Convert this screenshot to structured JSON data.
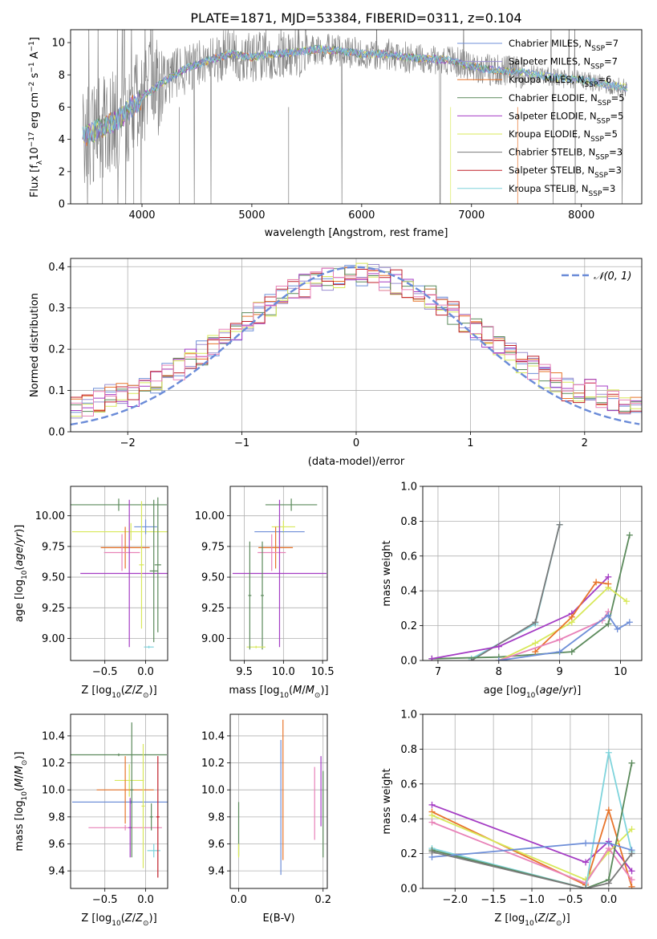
{
  "figure": {
    "title": "PLATE=1871, MJD=53384, FIBERID=0311, z=0.104"
  },
  "colors": {
    "chabrier_miles": "#6f8fd8",
    "salpeter_miles": "#9b8fd0",
    "kroupa_miles": "#e8742a",
    "chabrier_elodie": "#5b8a5b",
    "salpeter_elodie": "#a43cc4",
    "kroupa_elodie": "#d8e85a",
    "chabrier_stelib": "#7a7a7a",
    "salpeter_stelib": "#c0202a",
    "kroupa_stelib": "#7fd4dc",
    "pink": "#e882b8",
    "grid": "#b0b0b0",
    "normal_curve": "#6a8bd8"
  },
  "chart_data": [
    {
      "id": "spectrum",
      "type": "line",
      "xlabel": "wavelength [Angstrom, rest frame]",
      "ylabel": "Flux [f",
      "xlim": [
        3350,
        8550
      ],
      "ylim": [
        0,
        10.8
      ],
      "xticks": [
        "4000",
        "5000",
        "6000",
        "7000",
        "8000"
      ],
      "yticks": [
        "0",
        "2",
        "4",
        "6",
        "8",
        "10"
      ],
      "grid": false,
      "legend_position": "right",
      "series_names": [
        "Chabrier MILES, N_SSP=7",
        "Salpeter MILES, N_SSP=7",
        "Kroupa MILES, N_SSP=6",
        "Chabrier ELODIE, N_SSP=5",
        "Salpeter ELODIE, N_SSP=5",
        "Kroupa ELODIE, N_SSP=5",
        "Chabrier STELIB, N_SSP=3",
        "Salpeter STELIB, N_SSP=3",
        "Kroupa STELIB, N_SSP=3"
      ],
      "continuum": {
        "x": [
          3450,
          3600,
          3800,
          4000,
          4200,
          4400,
          4600,
          4800,
          5000,
          5200,
          5400,
          5600,
          5800,
          6000,
          6200,
          6400,
          6600,
          6800,
          7000,
          7200,
          7400,
          7600,
          7800,
          8000,
          8200,
          8400
        ],
        "y": [
          4.1,
          4.6,
          5.3,
          6.6,
          7.6,
          8.4,
          8.9,
          9.3,
          9.1,
          9.3,
          9.4,
          9.6,
          9.5,
          9.3,
          9.3,
          9.1,
          9.0,
          8.9,
          8.5,
          8.3,
          8.2,
          8.0,
          7.8,
          7.7,
          7.4,
          7.2
        ]
      }
    },
    {
      "id": "residuals",
      "type": "line",
      "xlabel": "(data-model)/error",
      "ylabel": "Normed distribution",
      "xlim": [
        -2.5,
        2.5
      ],
      "ylim": [
        0,
        0.42
      ],
      "xticks": [
        "−2",
        "−1",
        "0",
        "1",
        "2"
      ],
      "yticks": [
        "0.0",
        "0.1",
        "0.2",
        "0.3",
        "0.4"
      ],
      "grid": true,
      "legend": "𝒩(0, 1)",
      "legend_position": "top-right",
      "series": [
        {
          "name": "𝒩(0, 1)",
          "mu": 0,
          "sigma": 1
        }
      ]
    },
    {
      "id": "age_vs_Z",
      "type": "scatter",
      "xlabel": "Z [log",
      "ylabel": "age  [log",
      "xlim": [
        -0.92,
        0.27
      ],
      "ylim": [
        8.82,
        10.24
      ],
      "xticks": [
        "−0.5",
        "0.0"
      ],
      "yticks": [
        "9.00",
        "9.25",
        "9.50",
        "9.75",
        "10.00"
      ],
      "grid": true,
      "points": [
        {
          "x": -0.33,
          "y": 10.09,
          "xerr": 0.59,
          "yerr": 0.05
        },
        {
          "x": -0.18,
          "y": 9.87,
          "xerr": 0.72,
          "yerr": 0.07
        },
        {
          "x": 0.0,
          "y": 9.91,
          "xerr": 0.14,
          "yerr": 0.06
        },
        {
          "x": -0.25,
          "y": 9.74,
          "xerr": 0.3,
          "yerr": 0.17
        },
        {
          "x": -0.29,
          "y": 9.7,
          "xerr": 0.22,
          "yerr": 0.15
        },
        {
          "x": -0.2,
          "y": 9.53,
          "xerr": 0.6,
          "yerr": 0.6
        },
        {
          "x": 0.1,
          "y": 9.55,
          "xerr": 0.05,
          "yerr": 0.58
        },
        {
          "x": -0.05,
          "y": 9.6,
          "xerr": 0.03,
          "yerr": 0.52
        },
        {
          "x": 0.15,
          "y": 9.6,
          "xerr": 0.04,
          "yerr": 0.55
        },
        {
          "x": 0.04,
          "y": 8.93,
          "xerr": 0.06,
          "yerr": 0.01
        }
      ]
    },
    {
      "id": "age_vs_mass",
      "type": "scatter",
      "xlabel": "mass [log",
      "ylabel": "",
      "xlim": [
        9.32,
        10.56
      ],
      "ylim": [
        8.82,
        10.24
      ],
      "xticks": [
        "9.5",
        "10.0",
        "10.5"
      ],
      "yticks": [
        "9.00",
        "9.25",
        "9.50",
        "9.75",
        "10.00"
      ],
      "grid": true,
      "points": [
        {
          "x": 10.1,
          "y": 10.09,
          "xerr": 0.33,
          "yerr": 0.05
        },
        {
          "x": 10.0,
          "y": 9.91,
          "xerr": 0.15,
          "yerr": 0.05
        },
        {
          "x": 9.95,
          "y": 9.87,
          "xerr": 0.32,
          "yerr": 0.1
        },
        {
          "x": 9.9,
          "y": 9.74,
          "xerr": 0.22,
          "yerr": 0.17
        },
        {
          "x": 9.85,
          "y": 9.7,
          "xerr": 0.18,
          "yerr": 0.15
        },
        {
          "x": 9.95,
          "y": 9.53,
          "xerr": 0.6,
          "yerr": 0.6
        },
        {
          "x": 9.73,
          "y": 9.35,
          "xerr": 0.02,
          "yerr": 0.44
        },
        {
          "x": 9.65,
          "y": 8.93,
          "xerr": 0.12,
          "yerr": 0.01
        },
        {
          "x": 9.57,
          "y": 9.35,
          "xerr": 0.02,
          "yerr": 0.44
        }
      ]
    },
    {
      "id": "weight_vs_age",
      "type": "line",
      "xlabel": "age  [log",
      "ylabel": "mass weight",
      "xlim": [
        6.75,
        10.35
      ],
      "ylim": [
        0,
        1.0
      ],
      "xticks": [
        "7",
        "8",
        "9",
        "10"
      ],
      "yticks": [
        "0.0",
        "0.2",
        "0.4",
        "0.6",
        "0.8",
        "1.0"
      ],
      "grid": true,
      "series": [
        {
          "x": [
            7.55,
            8.6,
            9.0
          ],
          "y": [
            0.01,
            0.21,
            0.78
          ],
          "color": "kroupa_stelib"
        },
        {
          "x": [
            7.55,
            8.6,
            9.0
          ],
          "y": [
            0.0,
            0.22,
            0.78
          ],
          "color": "chabrier_stelib"
        },
        {
          "x": [
            6.9,
            8.0,
            9.2,
            9.8,
            10.15
          ],
          "y": [
            0.01,
            0.02,
            0.05,
            0.21,
            0.72
          ],
          "color": "chabrier_elodie"
        },
        {
          "x": [
            6.9,
            8.0,
            9.2,
            9.8
          ],
          "y": [
            0.01,
            0.08,
            0.27,
            0.48
          ],
          "color": "salpeter_elodie"
        },
        {
          "x": [
            8.0,
            8.6,
            9.2,
            9.8,
            10.1
          ],
          "y": [
            0.0,
            0.1,
            0.22,
            0.42,
            0.34
          ],
          "color": "kroupa_elodie"
        },
        {
          "x": [
            8.6,
            9.2,
            9.6,
            9.8
          ],
          "y": [
            0.05,
            0.25,
            0.45,
            0.44
          ],
          "color": "kroupa_miles"
        },
        {
          "x": [
            8.0,
            9.0,
            9.7,
            9.8
          ],
          "y": [
            0.0,
            0.12,
            0.23,
            0.28
          ],
          "color": "pink"
        },
        {
          "x": [
            8.0,
            9.0,
            9.8,
            9.95,
            10.15
          ],
          "y": [
            0.0,
            0.05,
            0.26,
            0.18,
            0.22
          ],
          "color": "chabrier_miles"
        }
      ]
    },
    {
      "id": "mass_vs_Z",
      "type": "scatter",
      "xlabel": "Z [log",
      "ylabel": "mass [log",
      "xlim": [
        -0.92,
        0.27
      ],
      "ylim": [
        9.27,
        10.56
      ],
      "xticks": [
        "−0.5",
        "0.0"
      ],
      "yticks": [
        "9.4",
        "9.6",
        "9.8",
        "10.0",
        "10.2",
        "10.4"
      ],
      "grid": true,
      "points": [
        {
          "x": -0.33,
          "y": 10.26,
          "xerr": 0.59,
          "yerr": 0.01
        },
        {
          "x": -0.2,
          "y": 10.07,
          "xerr": 0.18,
          "yerr": 0.12
        },
        {
          "x": -0.18,
          "y": 9.91,
          "xerr": 0.72,
          "yerr": 0.01
        },
        {
          "x": -0.25,
          "y": 10.0,
          "xerr": 0.35,
          "yerr": 0.25
        },
        {
          "x": -0.25,
          "y": 9.72,
          "xerr": 0.45,
          "yerr": 0.02
        },
        {
          "x": -0.19,
          "y": 9.72,
          "xerr": 0.02,
          "yerr": 0.22
        },
        {
          "x": -0.17,
          "y": 10.0,
          "xerr": 0.02,
          "yerr": 0.5
        },
        {
          "x": -0.03,
          "y": 9.88,
          "xerr": 0.02,
          "yerr": 0.46
        },
        {
          "x": 0.07,
          "y": 9.8,
          "xerr": 0.02,
          "yerr": 0.1
        },
        {
          "x": 0.1,
          "y": 9.55,
          "xerr": 0.08,
          "yerr": 0.05
        },
        {
          "x": 0.15,
          "y": 9.8,
          "xerr": 0.02,
          "yerr": 0.45
        }
      ]
    },
    {
      "id": "mass_vs_ebv",
      "type": "scatter",
      "xlabel": "E(B-V)",
      "ylabel": "",
      "xlim": [
        -0.02,
        0.21
      ],
      "ylim": [
        9.27,
        10.56
      ],
      "xticks": [
        "0.0",
        "0.2"
      ],
      "yticks": [
        "9.4",
        "9.6",
        "9.8",
        "10.0",
        "10.2",
        "10.4"
      ],
      "grid": true,
      "points": [
        {
          "x": 0.0,
          "y": 9.71,
          "xerr": 0.0,
          "yerr": 0.2
        },
        {
          "x": 0.0,
          "y": 9.55,
          "xerr": 0.0,
          "yerr": 0.05
        },
        {
          "x": 0.1,
          "y": 9.87,
          "xerr": 0.0,
          "yerr": 0.5
        },
        {
          "x": 0.105,
          "y": 10.0,
          "xerr": 0.0,
          "yerr": 0.52
        },
        {
          "x": 0.18,
          "y": 9.9,
          "xerr": 0.0,
          "yerr": 0.27
        },
        {
          "x": 0.195,
          "y": 9.99,
          "xerr": 0.0,
          "yerr": 0.26
        },
        {
          "x": 0.2,
          "y": 9.82,
          "xerr": 0.0,
          "yerr": 0.32
        }
      ]
    },
    {
      "id": "weight_vs_Z",
      "type": "line",
      "xlabel": "Z [log",
      "ylabel": "mass weight",
      "xlim": [
        -2.42,
        0.43
      ],
      "ylim": [
        0,
        1.0
      ],
      "xticks": [
        "−2.0",
        "−1.5",
        "−1.0",
        "−0.5",
        "0.0"
      ],
      "yticks": [
        "0.0",
        "0.2",
        "0.4",
        "0.6",
        "0.8",
        "1.0"
      ],
      "grid": true,
      "series": [
        {
          "x": [
            -2.3,
            -0.3,
            0.0,
            0.3
          ],
          "y": [
            0.48,
            0.15,
            0.27,
            0.1
          ],
          "color": "salpeter_elodie"
        },
        {
          "x": [
            -2.3,
            -0.3,
            0.0,
            0.3
          ],
          "y": [
            0.44,
            0.02,
            0.45,
            0.01
          ],
          "color": "kroupa_miles"
        },
        {
          "x": [
            -2.3,
            -0.3,
            0.0,
            0.3
          ],
          "y": [
            0.42,
            0.05,
            0.21,
            0.34
          ],
          "color": "kroupa_elodie"
        },
        {
          "x": [
            -2.3,
            -0.3,
            0.0,
            0.3
          ],
          "y": [
            0.38,
            0.03,
            0.23,
            0.05
          ],
          "color": "pink"
        },
        {
          "x": [
            -2.3,
            -0.3,
            0.0,
            0.3
          ],
          "y": [
            0.23,
            0.0,
            0.78,
            0.21
          ],
          "color": "kroupa_stelib"
        },
        {
          "x": [
            -2.3,
            -0.3,
            0.0,
            0.3
          ],
          "y": [
            0.22,
            0.0,
            0.05,
            0.72
          ],
          "color": "chabrier_elodie"
        },
        {
          "x": [
            -2.3,
            -0.3,
            0.0,
            0.3
          ],
          "y": [
            0.18,
            0.26,
            0.26,
            0.22
          ],
          "color": "chabrier_miles"
        },
        {
          "x": [
            -2.3,
            -0.3,
            0.0,
            0.3
          ],
          "y": [
            0.21,
            0.0,
            0.03,
            0.2
          ],
          "color": "chabrier_stelib"
        }
      ]
    }
  ]
}
